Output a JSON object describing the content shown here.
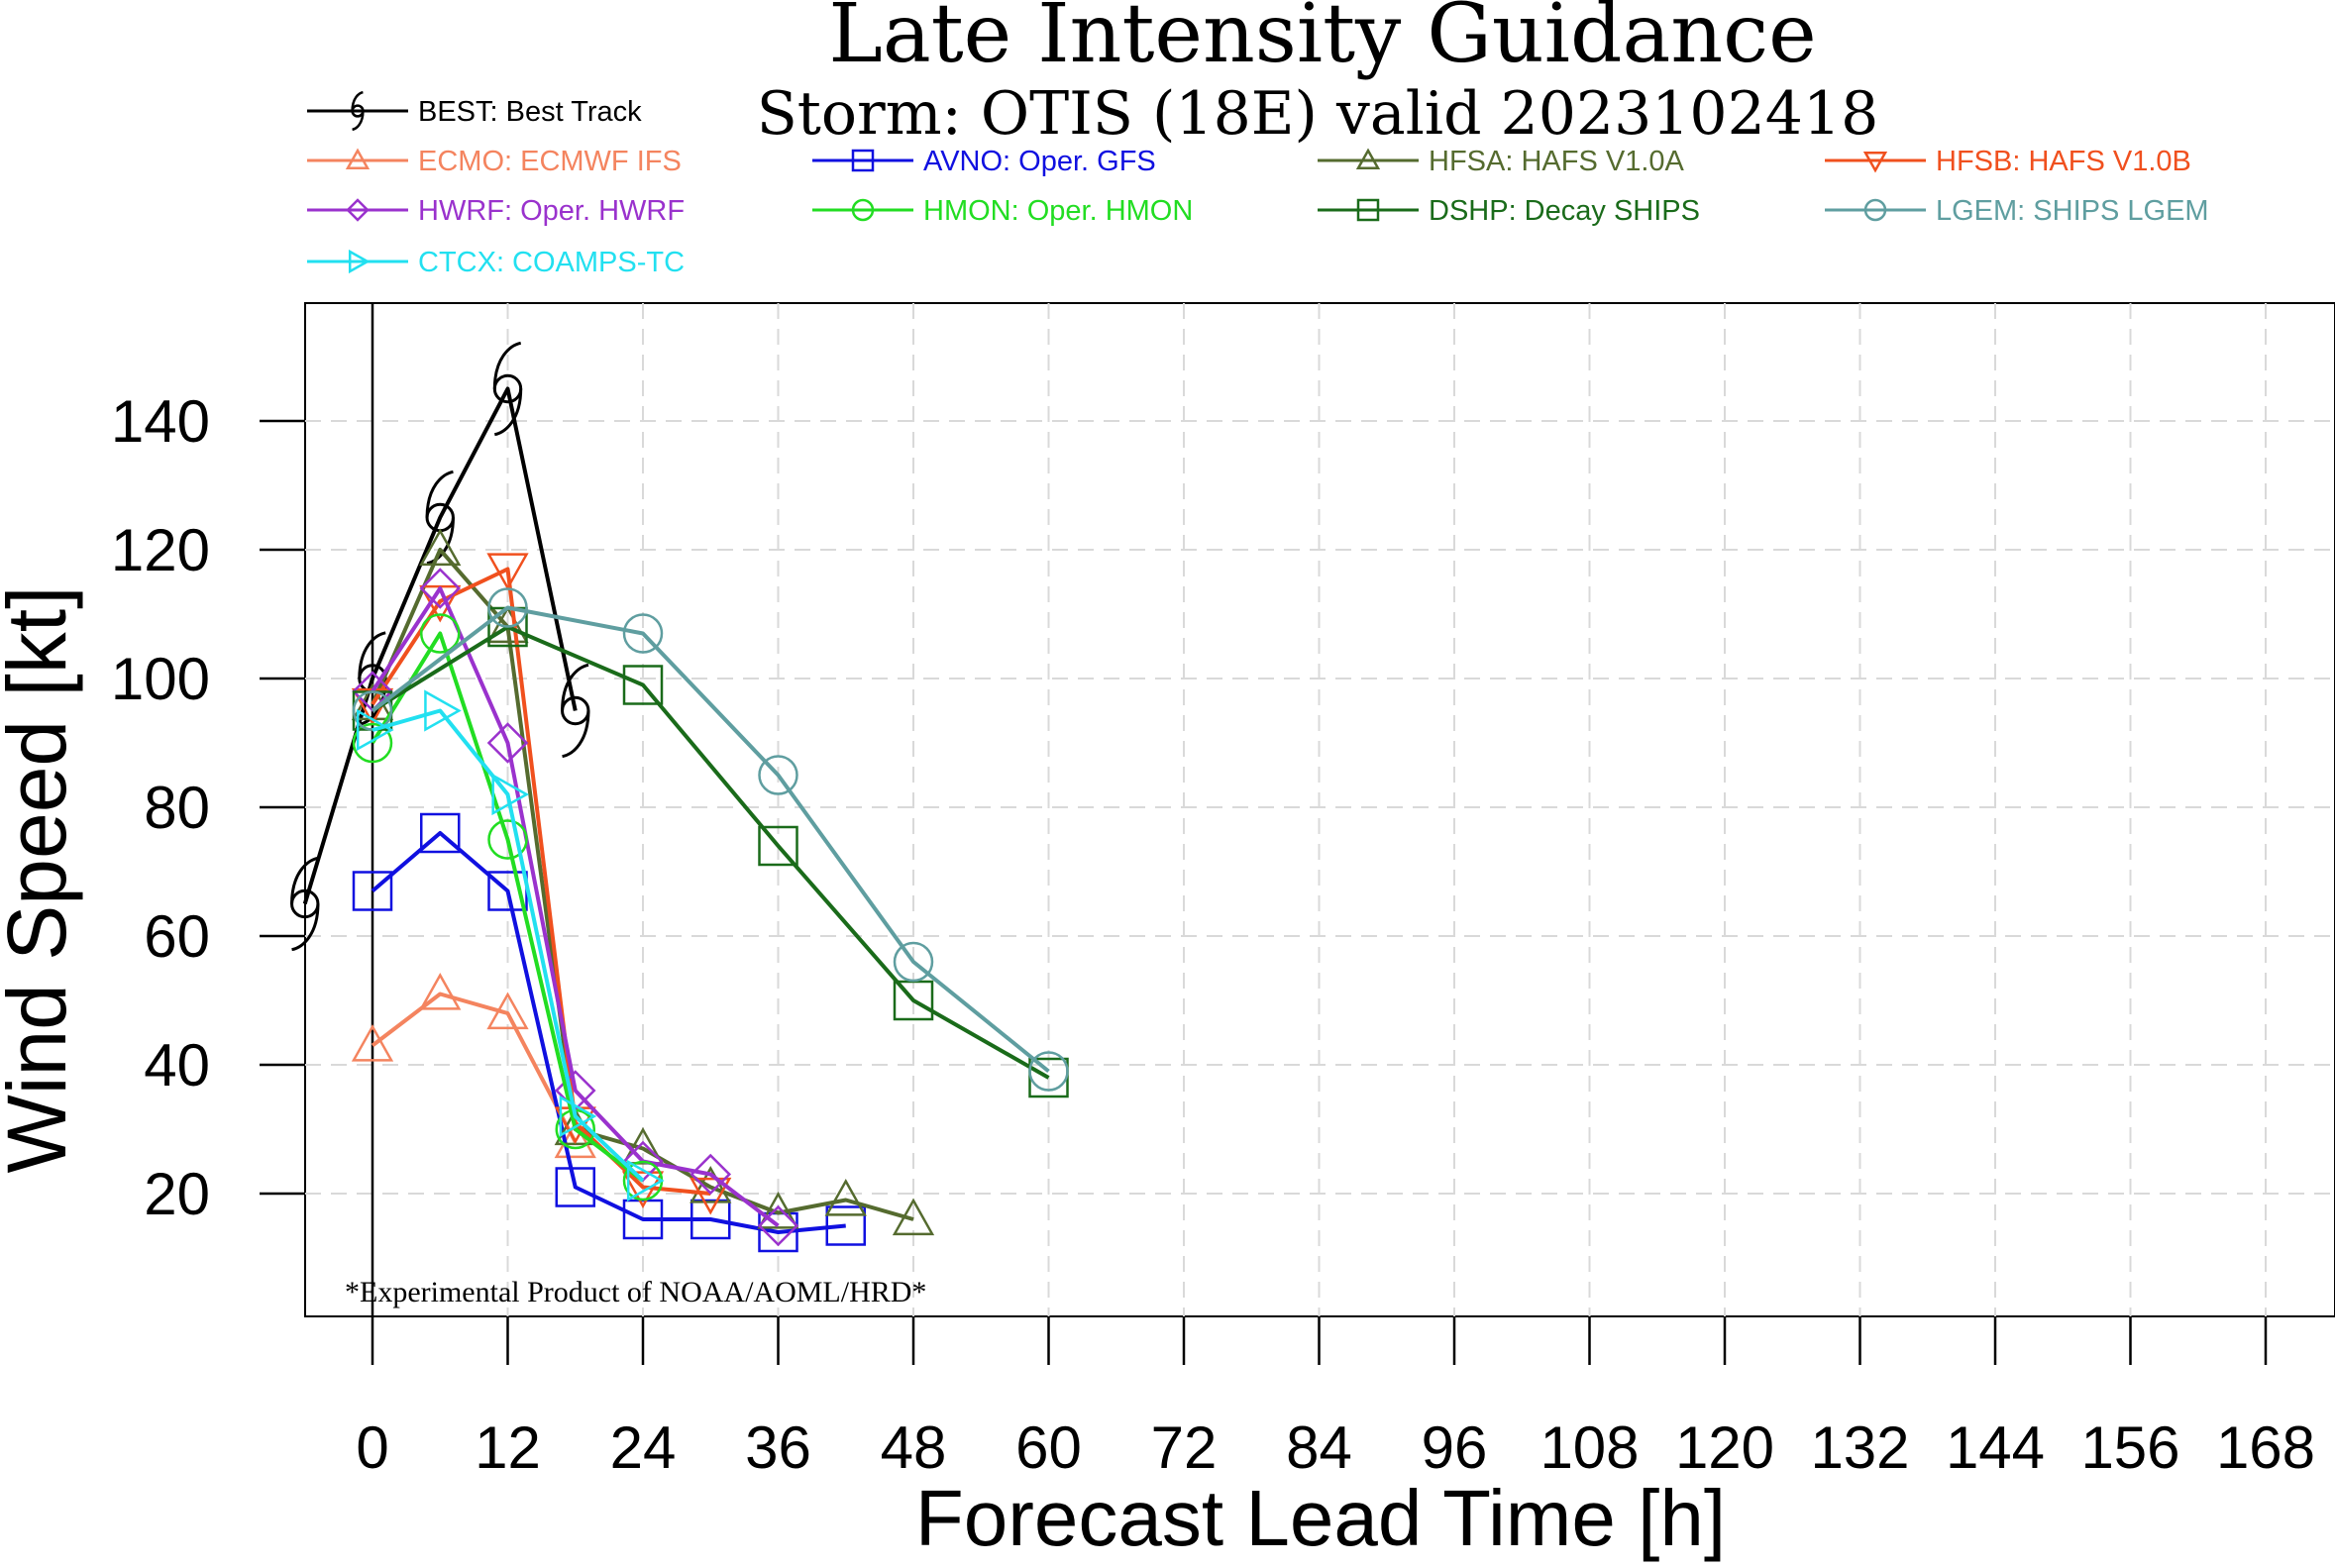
{
  "chart_data": {
    "type": "line",
    "title": "Late Intensity Guidance",
    "subtitle": "Storm: OTIS (18E) valid 2023102418",
    "xlabel": "Forecast Lead Time [h]",
    "ylabel": "Wind Speed [kt]",
    "xlim": [
      -6,
      174
    ],
    "ylim": [
      0,
      158
    ],
    "x_ticks": [
      0,
      12,
      24,
      36,
      48,
      60,
      72,
      84,
      96,
      108,
      120,
      132,
      144,
      156,
      168
    ],
    "y_ticks": [
      20,
      40,
      60,
      80,
      100,
      120,
      140
    ],
    "grid": true,
    "legend_position": "top",
    "footnote": "*Experimental Product of NOAA/AOML/HRD*",
    "series": [
      {
        "name": "BEST: Best Track",
        "color": "#000000",
        "marker": "hurricane",
        "x": [
          -6,
          0,
          6,
          12,
          18
        ],
        "values": [
          65,
          100,
          125,
          145,
          95
        ]
      },
      {
        "name": "ECMO: ECMWF IFS",
        "color": "#F4845F",
        "marker": "triangle",
        "x": [
          0,
          6,
          12,
          18
        ],
        "values": [
          43,
          51,
          48,
          28
        ]
      },
      {
        "name": "AVNO: Oper. GFS",
        "color": "#1010E0",
        "marker": "square",
        "x": [
          0,
          6,
          12,
          18,
          24,
          30,
          36,
          42
        ],
        "values": [
          67,
          76,
          67,
          21,
          16,
          16,
          14,
          15
        ]
      },
      {
        "name": "HFSA: HAFS V1.0A",
        "color": "#556B2F",
        "marker": "triangle",
        "x": [
          0,
          6,
          12,
          18,
          24,
          30,
          36,
          42,
          48
        ],
        "values": [
          96,
          120,
          108,
          30,
          27,
          21,
          17,
          19,
          16
        ]
      },
      {
        "name": "HFSB: HAFS V1.0B",
        "color": "#F0501E",
        "marker": "triangle-down",
        "x": [
          0,
          6,
          12,
          18,
          24,
          30
        ],
        "values": [
          96,
          112,
          117,
          31,
          21,
          20
        ]
      },
      {
        "name": "HWRF: Oper. HWRF",
        "color": "#9A32CD",
        "marker": "diamond",
        "x": [
          0,
          6,
          12,
          18,
          24,
          30,
          36
        ],
        "values": [
          98,
          114,
          90,
          36,
          25,
          23,
          15
        ]
      },
      {
        "name": "HMON: Oper. HMON",
        "color": "#22DD22",
        "marker": "circle",
        "x": [
          0,
          6,
          12,
          18,
          24
        ],
        "values": [
          90,
          107,
          75,
          30,
          22
        ]
      },
      {
        "name": "DSHP: Decay SHIPS",
        "color": "#1A6B1A",
        "marker": "square",
        "x": [
          0,
          12,
          24,
          36,
          48,
          60
        ],
        "values": [
          95,
          108,
          99,
          74,
          50,
          38
        ]
      },
      {
        "name": "LGEM: SHIPS LGEM",
        "color": "#5F9EA0",
        "marker": "circle",
        "x": [
          0,
          12,
          24,
          36,
          48,
          60
        ],
        "values": [
          95,
          111,
          107,
          85,
          56,
          39
        ]
      },
      {
        "name": "CTCX: COAMPS-TC",
        "color": "#22E0F0",
        "marker": "triangle-right",
        "x": [
          0,
          6,
          12,
          18,
          24
        ],
        "values": [
          92,
          95,
          82,
          32,
          22
        ]
      }
    ]
  }
}
